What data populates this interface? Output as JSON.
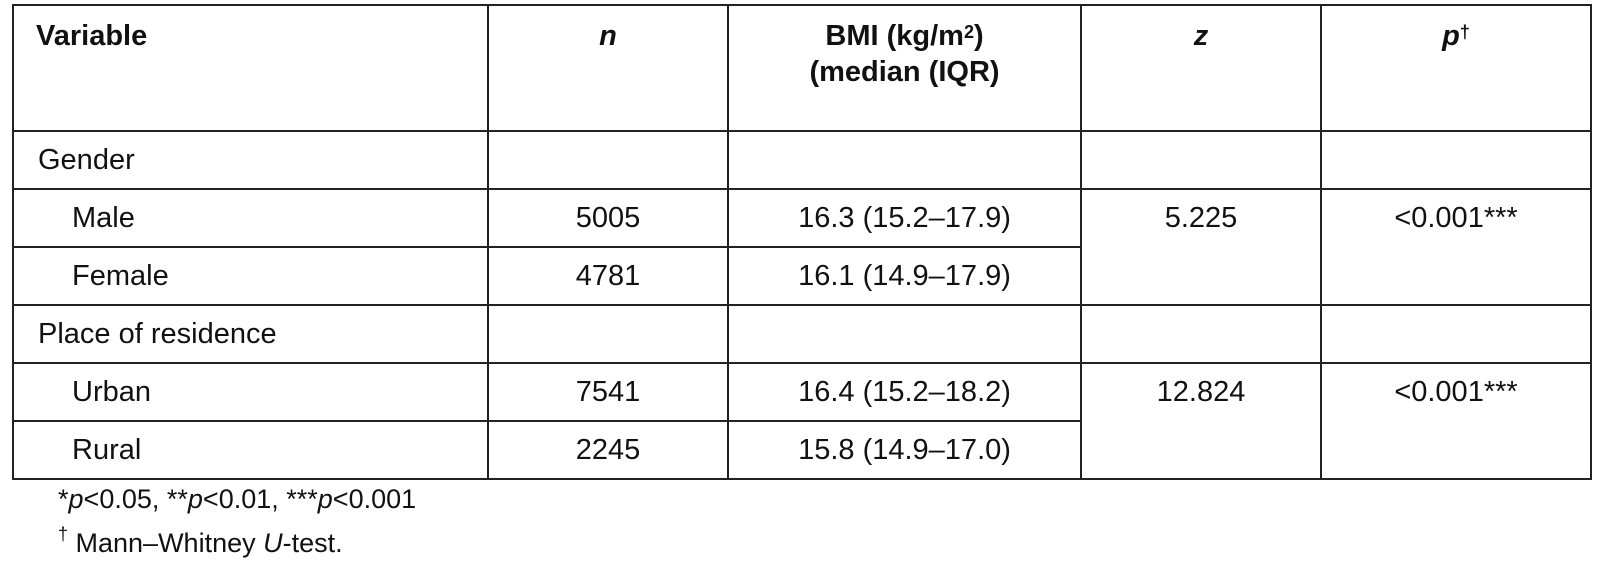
{
  "table": {
    "header": {
      "variable": "Variable",
      "n": "n",
      "bmi": [
        "BMI (kg/m",
        "2",
        ")",
        "(median (IQR)"
      ],
      "z": "z",
      "p": [
        "p",
        "†"
      ]
    },
    "groups": [
      {
        "label": "Gender",
        "rows": [
          {
            "label": "Male",
            "n": 5005,
            "bmi": "16.3 (15.2–17.9)"
          },
          {
            "label": "Female",
            "n": 4781,
            "bmi": "16.1 (14.9–17.9)"
          }
        ],
        "z": 5.225,
        "p": "<0.001***"
      },
      {
        "label": "Place of residence",
        "rows": [
          {
            "label": "Urban",
            "n": 7541,
            "bmi": "16.4 (15.2–18.2)"
          },
          {
            "label": "Rural",
            "n": 2245,
            "bmi": "15.8 (14.9–17.0)"
          }
        ],
        "z": 12.824,
        "p": "<0.001***"
      }
    ]
  },
  "footnotes": [
    [
      "*",
      "p",
      "<0.05, **",
      "p",
      "<0.01, ***",
      "p",
      "<0.001"
    ],
    [
      "†",
      " Mann–Whitney ",
      "U",
      "-test."
    ]
  ]
}
